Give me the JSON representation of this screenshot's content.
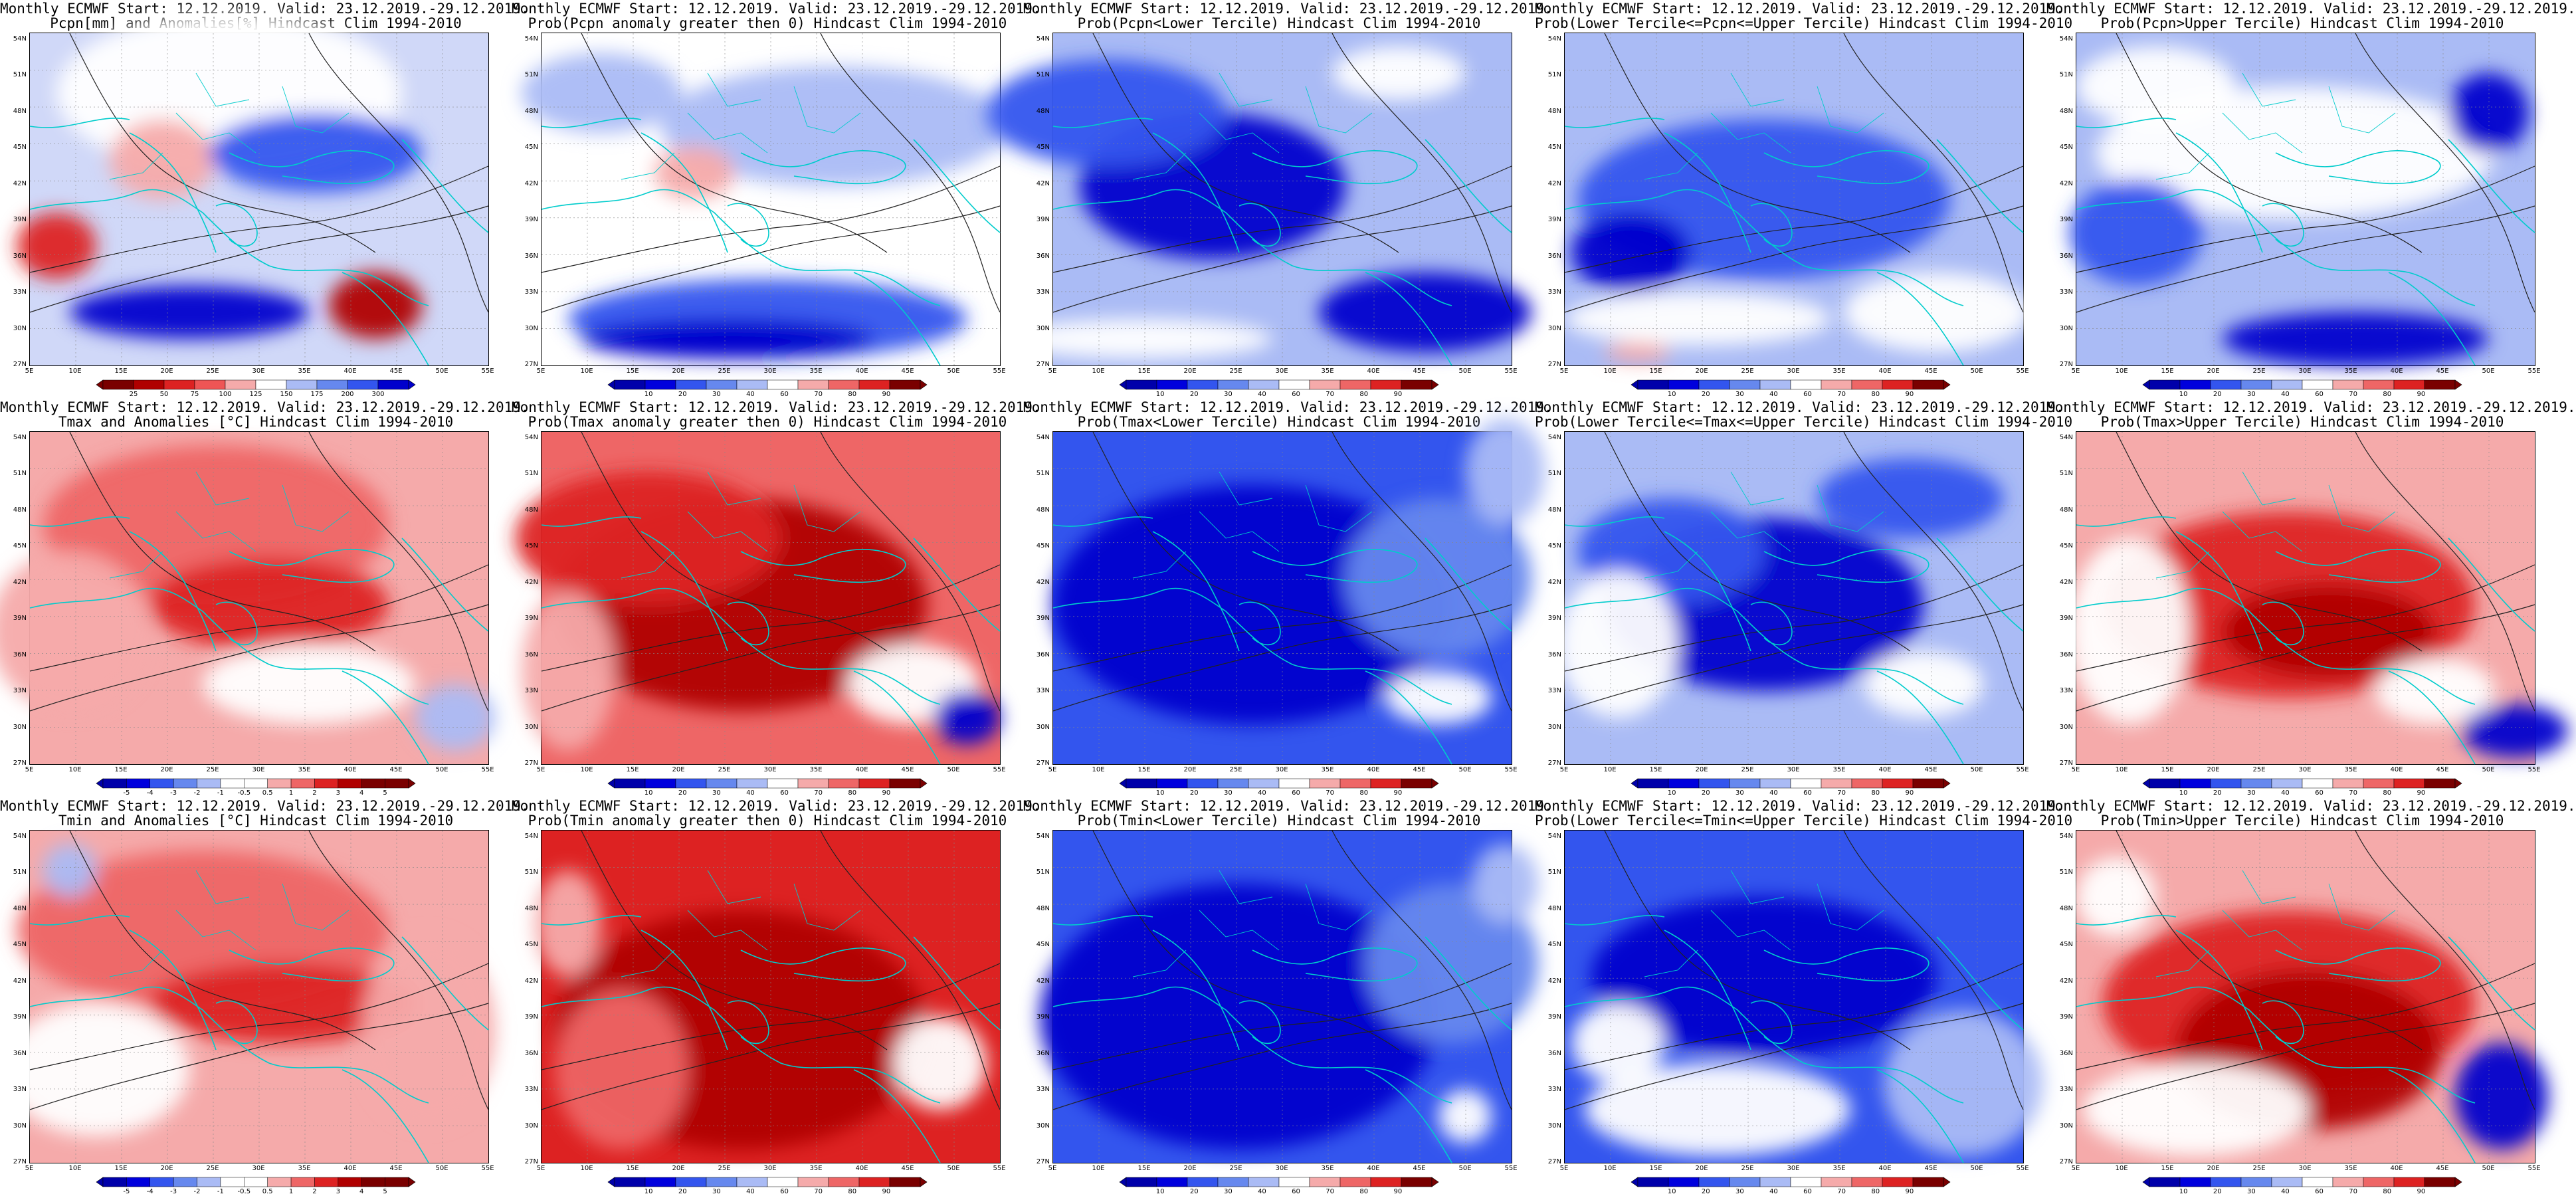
{
  "header_prefix": "Monthly ECMWF Start: 12.12.2019. Valid: 23.12.2019.-29.12.2019.",
  "lat_labels": [
    "54N",
    "51N",
    "48N",
    "45N",
    "42N",
    "39N",
    "36N",
    "33N",
    "30N",
    "27N"
  ],
  "lon_labels": [
    "5E",
    "10E",
    "15E",
    "20E",
    "25E",
    "30E",
    "35E",
    "40E",
    "45E",
    "50E",
    "55E"
  ],
  "colorbars": {
    "pcpn_anom": [
      "25",
      "50",
      "75",
      "100",
      "125",
      "150",
      "175",
      "200",
      "300"
    ],
    "temp_anom": [
      "-5",
      "-4",
      "-3",
      "-2",
      "-1",
      "-0.5",
      "0.5",
      "1",
      "2",
      "3",
      "4",
      "5"
    ],
    "prob": [
      "10",
      "20",
      "30",
      "40",
      "60",
      "70",
      "80",
      "90"
    ]
  },
  "colors": {
    "deep_blue": "#0000cc",
    "blue": "#3355ee",
    "light_blue": "#aabbf5",
    "white": "#ffffff",
    "light_red": "#f5aaaa",
    "red": "#ee3333",
    "dark_red": "#b00000",
    "coastline": "#00cccc",
    "contour": "#222222"
  },
  "panels": [
    {
      "id": "r1c1",
      "title": "Monthly ECMWF Start: 12.12.2019. Valid: 23.12.2019.-29.12.2019.",
      "subtitle": "Pcpn[mm] and Anomalies[%] Hindcast Clim 1994-2010",
      "colorbar": "pcpn_anom",
      "field": "pcpn_anom"
    },
    {
      "id": "r1c2",
      "title": "Monthly ECMWF Start: 12.12.2019. Valid: 23.12.2019.-29.12.2019.",
      "subtitle": "Prob(Pcpn anomaly greater then 0) Hindcast Clim 1994-2010",
      "colorbar": "prob",
      "field": "pcpn_pos"
    },
    {
      "id": "r1c3",
      "title": "Monthly ECMWF Start: 12.12.2019. Valid: 23.12.2019.-29.12.2019.",
      "subtitle": "Prob(Pcpn<Lower Tercile) Hindcast Clim 1994-2010",
      "colorbar": "prob",
      "field": "pcpn_low"
    },
    {
      "id": "r1c4",
      "title": "Monthly ECMWF Start: 12.12.2019. Valid: 23.12.2019.-29.12.2019.",
      "subtitle": "Prob(Lower Tercile<=Pcpn<=Upper Tercile) Hindcast Clim 1994-2010",
      "colorbar": "prob",
      "field": "pcpn_mid"
    },
    {
      "id": "r1c5",
      "title": "Monthly ECMWF Start: 12.12.2019. Valid: 23.12.2019.-29.12.2019.",
      "subtitle": "Prob(Pcpn>Upper Tercile) Hindcast Clim 1994-2010",
      "colorbar": "prob",
      "field": "pcpn_high"
    },
    {
      "id": "r2c1",
      "title": "Monthly ECMWF Start: 12.12.2019. Valid: 23.12.2019.-29.12.2019.",
      "subtitle": "Tmax and Anomalies [°C] Hindcast Clim 1994-2010",
      "colorbar": "temp_anom",
      "field": "tmax_anom"
    },
    {
      "id": "r2c2",
      "title": "Monthly ECMWF Start: 12.12.2019. Valid: 23.12.2019.-29.12.2019.",
      "subtitle": "Prob(Tmax anomaly greater then 0) Hindcast Clim 1994-2010",
      "colorbar": "prob",
      "field": "tmax_pos"
    },
    {
      "id": "r2c3",
      "title": "Monthly ECMWF Start: 12.12.2019. Valid: 23.12.2019.-29.12.2019.",
      "subtitle": "Prob(Tmax<Lower Tercile) Hindcast Clim 1994-2010",
      "colorbar": "prob",
      "field": "tmax_low"
    },
    {
      "id": "r2c4",
      "title": "Monthly ECMWF Start: 12.12.2019. Valid: 23.12.2019.-29.12.2019.",
      "subtitle": "Prob(Lower Tercile<=Tmax<=Upper Tercile) Hindcast Clim 1994-2010",
      "colorbar": "prob",
      "field": "tmax_mid"
    },
    {
      "id": "r2c5",
      "title": "Monthly ECMWF Start: 12.12.2019. Valid: 23.12.2019.-29.12.2019.",
      "subtitle": "Prob(Tmax>Upper Tercile) Hindcast Clim 1994-2010",
      "colorbar": "prob",
      "field": "tmax_high"
    },
    {
      "id": "r3c1",
      "title": "Monthly ECMWF Start: 12.12.2019. Valid: 23.12.2019.-29.12.2019.",
      "subtitle": "Tmin and Anomalies [°C] Hindcast Clim 1994-2010",
      "colorbar": "temp_anom",
      "field": "tmin_anom"
    },
    {
      "id": "r3c2",
      "title": "Monthly ECMWF Start: 12.12.2019. Valid: 23.12.2019.-29.12.2019.",
      "subtitle": "Prob(Tmin anomaly greater then 0) Hindcast Clim 1994-2010",
      "colorbar": "prob",
      "field": "tmin_pos"
    },
    {
      "id": "r3c3",
      "title": "Monthly ECMWF Start: 12.12.2019. Valid: 23.12.2019.-29.12.2019.",
      "subtitle": "Prob(Tmin<Lower Tercile) Hindcast Clim 1994-2010",
      "colorbar": "prob",
      "field": "tmin_low"
    },
    {
      "id": "r3c4",
      "title": "Monthly ECMWF Start: 12.12.2019. Valid: 23.12.2019.-29.12.2019.",
      "subtitle": "Prob(Lower Tercile<=Tmin<=Upper Tercile) Hindcast Clim 1994-2010",
      "colorbar": "prob",
      "field": "tmin_mid"
    },
    {
      "id": "r3c5",
      "title": "Monthly ECMWF Start: 12.12.2019. Valid: 23.12.2019.-29.12.2019.",
      "subtitle": "Prob(Tmin>Upper Tercile) Hindcast Clim 1994-2010",
      "colorbar": "prob",
      "field": "tmin_high"
    }
  ]
}
